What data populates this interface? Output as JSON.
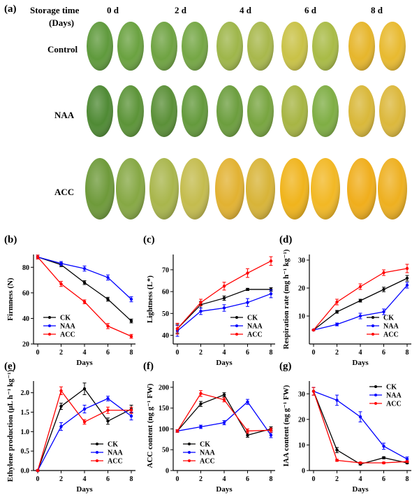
{
  "panel_a": {
    "label": "(a)",
    "header_title": "Storage time",
    "header_unit": "(Days)",
    "days": [
      "0 d",
      "2 d",
      "4 d",
      "6 d",
      "8 d"
    ],
    "rows": [
      "Control",
      "NAA",
      "ACC"
    ],
    "fruit_colors": {
      "Control": [
        [
          "#5f9a3c",
          "#6aa240"
        ],
        [
          "#6fa342",
          "#75a745"
        ],
        [
          "#9eb64a",
          "#a8b84c"
        ],
        [
          "#c9c247",
          "#a9bb46"
        ],
        [
          "#e6b62c",
          "#e8ba30"
        ]
      ],
      "NAA": [
        [
          "#4f8a34",
          "#5c9438"
        ],
        [
          "#5b9038",
          "#649a3c"
        ],
        [
          "#6c9e3e",
          "#78a540"
        ],
        [
          "#a7b544",
          "#7fae44"
        ],
        [
          "#d9b83a",
          "#dcb83c"
        ]
      ],
      "ACC": [
        [
          "#6e9a3a",
          "#86a844"
        ],
        [
          "#a9b64c",
          "#c4bc4e"
        ],
        [
          "#e2b232",
          "#d8b438"
        ],
        [
          "#f0b41c",
          "#f2b824"
        ],
        [
          "#f0ae1c",
          "#eeb020"
        ]
      ]
    }
  },
  "chart_data": [
    {
      "panel": "(b)",
      "type": "line",
      "ylabel": "Firmness (N)",
      "xlabel": "Days",
      "x": [
        0,
        2,
        4,
        6,
        8
      ],
      "xlim": [
        0,
        8
      ],
      "ylim": [
        20,
        90
      ],
      "yticks": [
        20,
        40,
        60,
        80
      ],
      "legend_pos": "bottom-left",
      "series": [
        {
          "name": "CK",
          "color": "#000000",
          "values": [
            88,
            82,
            68,
            55,
            38
          ],
          "err": [
            1.5,
            1.5,
            1.5,
            1.5,
            1.5
          ]
        },
        {
          "name": "NAA",
          "color": "#0000ff",
          "values": [
            88,
            83,
            79,
            72,
            55
          ],
          "err": [
            1.5,
            1.5,
            2,
            2,
            2
          ]
        },
        {
          "name": "ACC",
          "color": "#ff0000",
          "values": [
            88,
            67,
            53,
            34,
            26
          ],
          "err": [
            1.5,
            2,
            1.5,
            2,
            1.5
          ]
        }
      ]
    },
    {
      "panel": "(c)",
      "type": "line",
      "ylabel": "Lightness (L*)",
      "xlabel": "Days",
      "x": [
        0,
        2,
        4,
        6,
        8
      ],
      "xlim": [
        0,
        8
      ],
      "ylim": [
        36,
        77
      ],
      "yticks": [
        40,
        50,
        60,
        70
      ],
      "legend_pos": "bottom-right",
      "series": [
        {
          "name": "CK",
          "color": "#000000",
          "values": [
            43,
            54,
            57,
            61,
            61
          ],
          "err": [
            2,
            1.5,
            1,
            0.5,
            0.8
          ]
        },
        {
          "name": "NAA",
          "color": "#0000ff",
          "values": [
            42,
            51,
            52.5,
            55,
            59
          ],
          "err": [
            2.5,
            1.5,
            1.5,
            1.8,
            1.8
          ]
        },
        {
          "name": "ACC",
          "color": "#ff0000",
          "values": [
            43,
            55,
            62.5,
            68.5,
            74
          ],
          "err": [
            2.5,
            1.5,
            1.8,
            2,
            2
          ]
        }
      ]
    },
    {
      "panel": "(d)",
      "type": "line",
      "ylabel": "Respiration rate (mg h⁻¹ kg⁻¹)",
      "xlabel": "Days",
      "x": [
        0,
        2,
        4,
        6,
        8
      ],
      "xlim": [
        0,
        8
      ],
      "ylim": [
        0,
        32
      ],
      "yticks": [
        10,
        20,
        30
      ],
      "legend_pos": "bottom-right",
      "series": [
        {
          "name": "CK",
          "color": "#000000",
          "values": [
            5,
            11.5,
            15.5,
            19.5,
            23.5
          ],
          "err": [
            0.2,
            0.5,
            0.5,
            0.8,
            1
          ]
        },
        {
          "name": "NAA",
          "color": "#0000ff",
          "values": [
            5,
            7,
            10,
            11.5,
            21
          ],
          "err": [
            0.2,
            0.5,
            1,
            1,
            1
          ]
        },
        {
          "name": "ACC",
          "color": "#ff0000",
          "values": [
            5,
            15,
            20.5,
            25.5,
            27
          ],
          "err": [
            0.2,
            1,
            1,
            1,
            1.5
          ]
        }
      ]
    },
    {
      "panel": "(e)",
      "type": "line",
      "ylabel": "Ethylene production (μL h⁻¹ kg⁻¹)",
      "xlabel": "Days",
      "x": [
        0,
        2,
        4,
        6,
        8
      ],
      "xlim": [
        0,
        8
      ],
      "ylim": [
        0,
        2.3
      ],
      "yticks": [
        0.0,
        0.5,
        1.0,
        1.5,
        2.0
      ],
      "legend_pos": "bottom-right",
      "series": [
        {
          "name": "CK",
          "color": "#000000",
          "values": [
            0,
            1.65,
            2.1,
            1.27,
            1.58
          ],
          "err": [
            0.02,
            0.08,
            0.15,
            0.08,
            0.1
          ]
        },
        {
          "name": "NAA",
          "color": "#0000ff",
          "values": [
            0,
            1.13,
            1.58,
            1.85,
            1.4
          ],
          "err": [
            0.02,
            0.1,
            0.1,
            0.06,
            0.1
          ]
        },
        {
          "name": "ACC",
          "color": "#ff0000",
          "values": [
            0,
            2.05,
            1.25,
            1.55,
            1.55
          ],
          "err": [
            0.02,
            0.1,
            0.06,
            0.08,
            0.08
          ]
        }
      ]
    },
    {
      "panel": "(f)",
      "type": "line",
      "ylabel": "ACC content (ng g⁻¹ FW)",
      "xlabel": "Days",
      "x": [
        0,
        2,
        4,
        6,
        8
      ],
      "xlim": [
        0,
        8
      ],
      "ylim": [
        0,
        215
      ],
      "yticks": [
        0,
        50,
        100,
        150,
        200
      ],
      "legend_pos": "bottom-left",
      "series": [
        {
          "name": "CK",
          "color": "#000000",
          "values": [
            95,
            160,
            182,
            85,
            100
          ],
          "err": [
            3,
            6,
            5,
            5,
            5
          ]
        },
        {
          "name": "NAA",
          "color": "#0000ff",
          "values": [
            95,
            105,
            115,
            165,
            85
          ],
          "err": [
            3,
            4,
            5,
            6,
            6
          ]
        },
        {
          "name": "ACC",
          "color": "#ff0000",
          "values": [
            95,
            185,
            170,
            95,
            97
          ],
          "err": [
            3,
            7,
            5,
            5,
            5
          ]
        }
      ]
    },
    {
      "panel": "(g)",
      "type": "line",
      "ylabel": "IAA content (ng g⁻¹ FW)",
      "xlabel": "Days",
      "x": [
        0,
        2,
        4,
        6,
        8
      ],
      "xlim": [
        0,
        8
      ],
      "ylim": [
        0,
        35
      ],
      "yticks": [
        0,
        10,
        20,
        30
      ],
      "legend_pos": "top-right",
      "series": [
        {
          "name": "CK",
          "color": "#000000",
          "values": [
            31,
            8,
            2.5,
            5,
            3
          ],
          "err": [
            1.5,
            1,
            0.3,
            0.4,
            0.3
          ]
        },
        {
          "name": "NAA",
          "color": "#0000ff",
          "values": [
            31,
            27.5,
            21,
            9.5,
            4.5
          ],
          "err": [
            1.5,
            2,
            2,
            1.2,
            0.8
          ]
        },
        {
          "name": "ACC",
          "color": "#ff0000",
          "values": [
            31,
            4,
            3,
            3,
            3.5
          ],
          "err": [
            1.5,
            0.4,
            0.3,
            0.3,
            0.3
          ]
        }
      ]
    }
  ]
}
